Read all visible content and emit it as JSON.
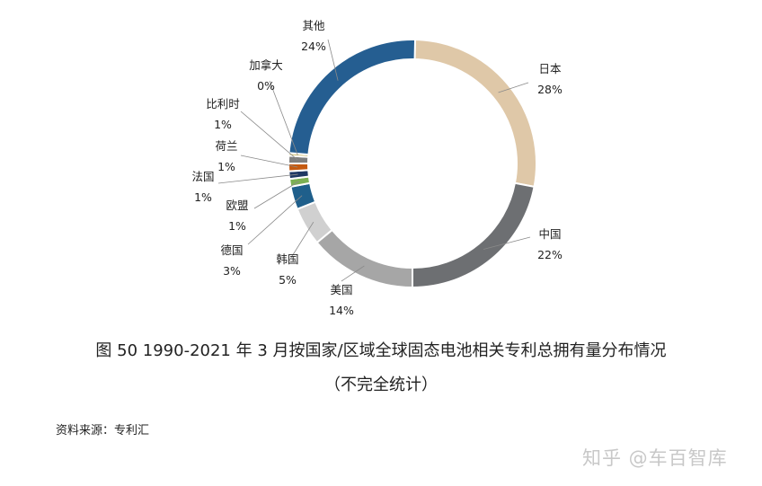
{
  "chart_data": {
    "type": "pie",
    "donut": true,
    "categories": [
      "日本",
      "中国",
      "美国",
      "韩国",
      "德国",
      "欧盟",
      "法国",
      "荷兰",
      "比利时",
      "加拿大",
      "其他"
    ],
    "values": [
      28,
      22,
      14,
      5,
      3,
      1,
      1,
      1,
      1,
      0,
      24
    ],
    "labels": [
      "28%",
      "22%",
      "14%",
      "5%",
      "3%",
      "1%",
      "1%",
      "1%",
      "1%",
      "0%",
      "24%"
    ],
    "colors": [
      "#dfc8a8",
      "#6d6f72",
      "#a6a6a6",
      "#d0d0d0",
      "#1f5f8b",
      "#7cb054",
      "#1f3864",
      "#c55a11",
      "#7f7f7f",
      "#c9b458",
      "#255e91"
    ],
    "legend": "none"
  },
  "caption": {
    "title": "图  50 1990-2021 年 3 月按国家/区域全球固态电池相关专利总拥有量分布情况",
    "subtitle": "（不完全统计）"
  },
  "source": "资料来源：专利汇",
  "watermark": "知乎 @车百智库"
}
